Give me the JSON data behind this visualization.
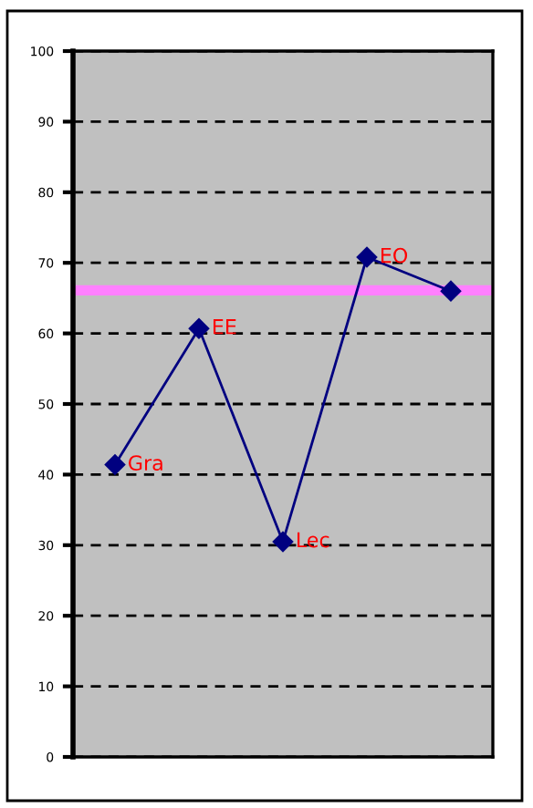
{
  "chart_data": {
    "type": "line",
    "categories": [
      "Gra",
      "EE",
      "Lec",
      "EO",
      null
    ],
    "series": [
      {
        "color": "#000080",
        "values": [
          41.4,
          60.7,
          30.5,
          70.8,
          66.0
        ]
      }
    ],
    "ylim": [
      0,
      100
    ],
    "yticks": [
      0,
      10,
      20,
      30,
      40,
      50,
      60,
      70,
      80,
      90,
      100
    ],
    "grid": "y",
    "marker": "diamond",
    "line_style": "solid",
    "tick_labels": "y",
    "ref_lines": [
      {
        "axis": "y",
        "value": 66.1,
        "color": "#ff80ff"
      }
    ]
  }
}
